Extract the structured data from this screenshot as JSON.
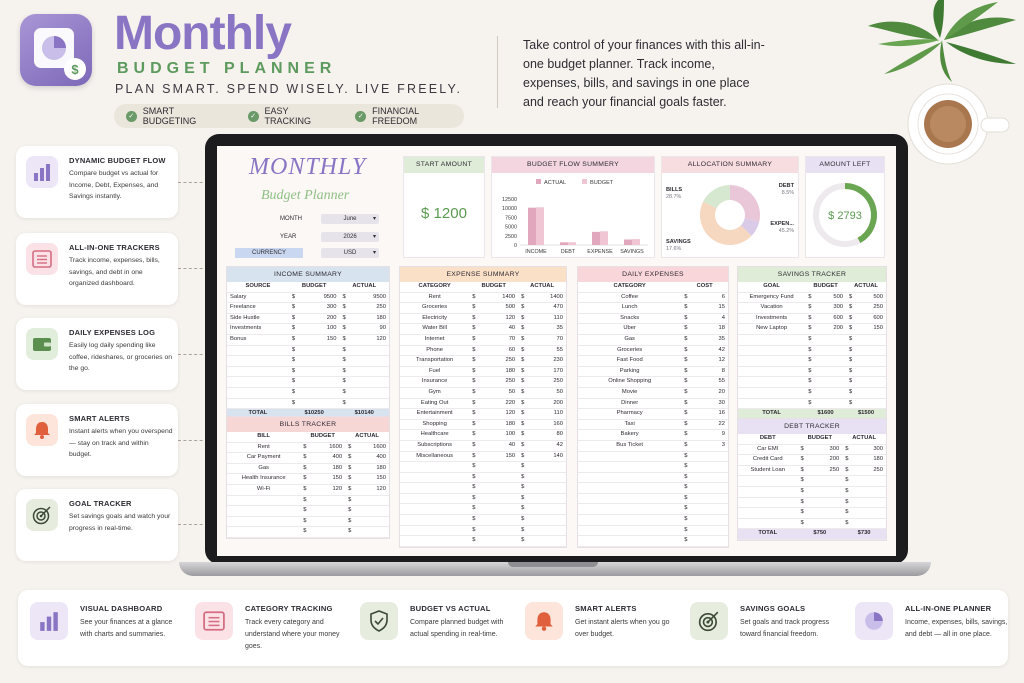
{
  "header": {
    "title": "Monthly",
    "subtitle": "BUDGET PLANNER",
    "tagline": "PLAN SMART. SPEND WISELY. LIVE FREELY.",
    "pills": [
      "SMART BUDGETING",
      "EASY TRACKING",
      "FINANCIAL FREEDOM"
    ],
    "intro": "Take control of your finances with this all-in-one budget planner. Track income, expenses, bills, and savings in one place and reach your financial goals faster."
  },
  "left_features": [
    {
      "title": "DYNAMIC BUDGET FLOW",
      "desc": "Compare budget vs actual for Income, Debt, Expenses, and Savings instantly.",
      "icon": "bar-chart-icon"
    },
    {
      "title": "ALL-IN-ONE TRACKERS",
      "desc": "Track income, expenses, bills, savings, and debt in one organized dashboard.",
      "icon": "list-icon"
    },
    {
      "title": "DAILY EXPENSES LOG",
      "desc": "Easily log daily spending like coffee, rideshares, or groceries on the go.",
      "icon": "wallet-icon"
    },
    {
      "title": "SMART ALERTS",
      "desc": "Instant alerts when you overspend — stay on track and within budget.",
      "icon": "bell-icon"
    },
    {
      "title": "GOAL TRACKER",
      "desc": "Set savings goals and watch your progress in real-time.",
      "icon": "target-icon"
    }
  ],
  "sheet": {
    "title": "MONTHLY",
    "subtitle": "Budget Planner",
    "controls": {
      "month_label": "MONTH",
      "month": "June",
      "year_label": "YEAR",
      "year": "2026",
      "currency_label": "CURRENCY",
      "currency": "USD"
    },
    "start_amount": {
      "label": "START AMOUNT",
      "value": "$ 1200"
    },
    "amount_left": {
      "label": "AMOUNT LEFT",
      "value": "$ 2793",
      "progress": 0.42
    },
    "allocation": {
      "label": "ALLOCATION SUMMARY",
      "slices": [
        {
          "name": "BILLS",
          "pct": "28.7%",
          "value": 28.7,
          "color": "#e9c7d8"
        },
        {
          "name": "DEBT",
          "pct": "8.5%",
          "value": 8.5,
          "color": "#d9cbe8"
        },
        {
          "name": "EXPEN...",
          "pct": "45.2%",
          "value": 45.2,
          "color": "#f6d7bf"
        },
        {
          "name": "SAVINGS",
          "pct": "17.6%",
          "value": 17.6,
          "color": "#d6e8d0"
        }
      ]
    },
    "income": {
      "label": "INCOME SUMMARY",
      "headers": [
        "SOURCE",
        "BUDGET",
        "ACTUAL"
      ],
      "rows": [
        [
          "Salary",
          "9500",
          "9500"
        ],
        [
          "Freelance",
          "300",
          "250"
        ],
        [
          "Side Hustle",
          "200",
          "180"
        ],
        [
          "Investments",
          "100",
          "90"
        ],
        [
          "Bonus",
          "150",
          "120"
        ]
      ],
      "empty_rows": 6,
      "total_label": "TOTAL",
      "total_budget": "$10250",
      "total_actual": "$10140"
    },
    "bills": {
      "label": "BILLS TRACKER",
      "headers": [
        "BILL",
        "BUDGET",
        "ACTUAL"
      ],
      "rows": [
        [
          "Rent",
          "1600",
          "1600"
        ],
        [
          "Car Payment",
          "400",
          "400"
        ],
        [
          "Gas",
          "180",
          "180"
        ],
        [
          "Health Insurance",
          "150",
          "150"
        ],
        [
          "Wi-Fi",
          "120",
          "120"
        ]
      ],
      "empty_rows": 4
    },
    "expenses": {
      "label": "EXPENSE SUMMARY",
      "headers": [
        "CATEGORY",
        "BUDGET",
        "ACTUAL"
      ],
      "rows": [
        [
          "Rent",
          "1400",
          "1400"
        ],
        [
          "Groceries",
          "500",
          "470"
        ],
        [
          "Electricity",
          "120",
          "110"
        ],
        [
          "Water Bill",
          "40",
          "35"
        ],
        [
          "Internet",
          "70",
          "70"
        ],
        [
          "Phone",
          "60",
          "55"
        ],
        [
          "Transportation",
          "250",
          "230"
        ],
        [
          "Fuel",
          "180",
          "170"
        ],
        [
          "Insurance",
          "250",
          "250"
        ],
        [
          "Gym",
          "50",
          "50"
        ],
        [
          "Eating Out",
          "220",
          "200"
        ],
        [
          "Entertainment",
          "120",
          "110"
        ],
        [
          "Shopping",
          "180",
          "160"
        ],
        [
          "Healthcare",
          "100",
          "80"
        ],
        [
          "Subscriptions",
          "40",
          "42"
        ],
        [
          "Miscellaneous",
          "150",
          "140"
        ]
      ],
      "empty_rows": 8
    },
    "daily": {
      "label": "DAILY EXPENSES",
      "headers": [
        "CATEGORY",
        "COST"
      ],
      "rows": [
        [
          "Coffee",
          "6"
        ],
        [
          "Lunch",
          "15"
        ],
        [
          "Snacks",
          "4"
        ],
        [
          "Uber",
          "18"
        ],
        [
          "Gas",
          "35"
        ],
        [
          "Groceries",
          "42"
        ],
        [
          "Fast Food",
          "12"
        ],
        [
          "Parking",
          "8"
        ],
        [
          "Online Shopping",
          "55"
        ],
        [
          "Movie",
          "20"
        ],
        [
          "Dinner",
          "30"
        ],
        [
          "Pharmacy",
          "16"
        ],
        [
          "Taxi",
          "22"
        ],
        [
          "Bakery",
          "9"
        ],
        [
          "Bus Ticket",
          "3"
        ]
      ],
      "empty_rows": 9
    },
    "savings": {
      "label": "SAVINGS TRACKER",
      "headers": [
        "GOAL",
        "BUDGET",
        "ACTUAL"
      ],
      "rows": [
        [
          "Emergency Fund",
          "500",
          "500"
        ],
        [
          "Vacation",
          "300",
          "250"
        ],
        [
          "Investments",
          "600",
          "600"
        ],
        [
          "New Laptop",
          "200",
          "150"
        ]
      ],
      "empty_rows": 7,
      "total_label": "TOTAL",
      "total_budget": "$1600",
      "total_actual": "$1500"
    },
    "debt": {
      "label": "DEBT TRACKER",
      "headers": [
        "DEBT",
        "BUDGET",
        "ACTUAL"
      ],
      "rows": [
        [
          "Car EMI",
          "300",
          "300"
        ],
        [
          "Credit Card",
          "200",
          "180"
        ],
        [
          "Student Loan",
          "250",
          "250"
        ]
      ],
      "empty_rows": 5,
      "total_label": "TOTAL",
      "total_budget": "$750",
      "total_actual": "$730"
    },
    "currency_symbol": "$"
  },
  "chart_data": {
    "type": "bar",
    "title": "BUDGET FLOW SUMMERY",
    "categories": [
      "INCOME",
      "DEBT",
      "EXPENSE",
      "SAVINGS"
    ],
    "series": [
      {
        "name": "ACTUAL",
        "values": [
          10140,
          730,
          3572,
          1500
        ],
        "color": "#e1a7bd"
      },
      {
        "name": "BUDGET",
        "values": [
          10250,
          750,
          3730,
          1600
        ],
        "color": "#f0c5d4"
      }
    ],
    "y_ticks": [
      "12500",
      "10000",
      "7500",
      "5000",
      "2500",
      "0"
    ],
    "ylim": [
      0,
      12500
    ]
  },
  "bottom_features": [
    {
      "title": "VISUAL DASHBOARD",
      "desc": "See your finances at a glance with charts and summaries.",
      "icon": "bar-chart-icon"
    },
    {
      "title": "CATEGORY TRACKING",
      "desc": "Track every category and understand where your money goes.",
      "icon": "list-icon"
    },
    {
      "title": "BUDGET VS ACTUAL",
      "desc": "Compare planned budget with actual spending in real-time.",
      "icon": "shield-check-icon"
    },
    {
      "title": "SMART ALERTS",
      "desc": "Get instant alerts when you go over budget.",
      "icon": "bell-icon"
    },
    {
      "title": "SAVINGS GOALS",
      "desc": "Set goals and track progress toward financial freedom.",
      "icon": "target-icon"
    },
    {
      "title": "ALL-IN-ONE PLANNER",
      "desc": "Income, expenses, bills, savings, and debt — all in one place.",
      "icon": "pie-chart-icon"
    }
  ]
}
